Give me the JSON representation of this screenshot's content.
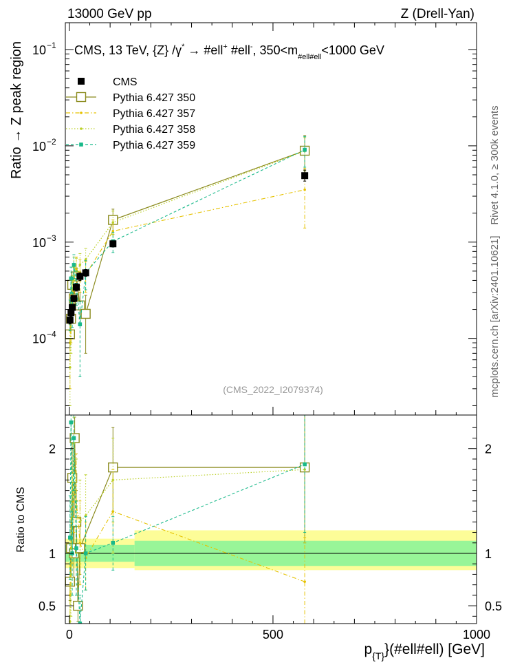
{
  "header": {
    "left": "13000 GeV pp",
    "right": "Z (Drell-Yan)"
  },
  "side_labels": {
    "rivet": "Rivet 4.1.0, ≥ 300k events",
    "mcplots": "mcplots.cern.ch [arXiv:2401.10621]"
  },
  "colors": {
    "cms": "#000000",
    "p350": "#8b8b1e",
    "p357": "#e6c200",
    "p358": "#bcd12a",
    "p359": "#19b98a",
    "band_inner": "#98f598",
    "band_outer": "#fdfd98"
  },
  "chart_data": [
    {
      "type": "line",
      "name": "main",
      "title": "CMS, 13 TeV, {Z} /γ* → #ell⁺ #ell⁻, 350<m_{#ell#ell}<1000 GeV",
      "title_parts": {
        "a": "CMS, 13 TeV, {Z} /γ",
        "a_sup": "*",
        "b": " →  #ell",
        "b_sup": "+",
        "c": " #ell",
        "c_sup": "-",
        "d": ", 350<m",
        "d_sub": "#ell#ell",
        "e": "<1000 GeV"
      },
      "ylabel": "Ratio → Z peak region",
      "yscale": "log",
      "ylim": [
        1.6e-05,
        0.19
      ],
      "xlim": [
        -10,
        1000
      ],
      "y_ticks": [
        {
          "value": 0.1,
          "base": "10",
          "exp": "−1"
        },
        {
          "value": 0.01,
          "base": "10",
          "exp": "−2"
        },
        {
          "value": 0.001,
          "base": "10",
          "exp": "−3"
        },
        {
          "value": 0.0001,
          "base": "10",
          "exp": "−4"
        }
      ],
      "watermark": "(CMS_2022_I2079374)",
      "legend_position": "top-left",
      "series": [
        {
          "name": "CMS",
          "style": "data",
          "points": [
            {
              "x": 1.5,
              "y": 0.000155,
              "lo": 0.000142,
              "hi": 0.000168
            },
            {
              "x": 4,
              "y": 0.000185,
              "lo": 0.00017,
              "hi": 0.0002
            },
            {
              "x": 7,
              "y": 0.00021,
              "lo": 0.000194,
              "hi": 0.000226
            },
            {
              "x": 11,
              "y": 0.00026,
              "lo": 0.00024,
              "hi": 0.00028
            },
            {
              "x": 17,
              "y": 0.00034,
              "lo": 0.00031,
              "hi": 0.00037
            },
            {
              "x": 26,
              "y": 0.00044,
              "lo": 0.0004,
              "hi": 0.00048
            },
            {
              "x": 40,
              "y": 0.00048,
              "lo": 0.00044,
              "hi": 0.00052
            },
            {
              "x": 107,
              "y": 0.00096,
              "lo": 0.00089,
              "hi": 0.00103
            },
            {
              "x": 578,
              "y": 0.0049,
              "lo": 0.0043,
              "hi": 0.0056
            }
          ]
        },
        {
          "name": "Pythia 6.427 350",
          "style": "open-square",
          "points": [
            {
              "x": 1.5,
              "y": 0.00011,
              "lo": 8e-05,
              "hi": 0.00014
            },
            {
              "x": 4,
              "y": 0.00016,
              "lo": 0.00012,
              "hi": 0.00021
            },
            {
              "x": 7,
              "y": 0.00036,
              "lo": 0.00029,
              "hi": 0.00044
            },
            {
              "x": 11,
              "y": 0.00026,
              "lo": 0.0002,
              "hi": 0.00033
            },
            {
              "x": 17,
              "y": 0.00044,
              "lo": 0.00035,
              "hi": 0.00054
            },
            {
              "x": 26,
              "y": 0.00022,
              "lo": 0.00016,
              "hi": 0.0003
            },
            {
              "x": 40,
              "y": 0.00018,
              "lo": 7e-05,
              "hi": 0.00028
            },
            {
              "x": 107,
              "y": 0.0017,
              "lo": 0.0012,
              "hi": 0.0022
            },
            {
              "x": 578,
              "y": 0.0089,
              "lo": 0.0052,
              "hi": 0.0128
            }
          ]
        },
        {
          "name": "Pythia 6.427 357",
          "style": "dashdot-dot",
          "points": [
            {
              "x": 1.5,
              "y": 9e-05,
              "lo": 3e-05,
              "hi": 0.00016
            },
            {
              "x": 4,
              "y": 0.00019,
              "lo": 9e-05,
              "hi": 0.00028
            },
            {
              "x": 7,
              "y": 0.00028,
              "lo": 0.00018,
              "hi": 0.00038
            },
            {
              "x": 11,
              "y": 0.00042,
              "lo": 0.0003,
              "hi": 0.00055
            },
            {
              "x": 17,
              "y": 0.00052,
              "lo": 0.00035,
              "hi": 0.0007
            },
            {
              "x": 26,
              "y": 0.00048,
              "lo": 0.0003,
              "hi": 0.00066
            },
            {
              "x": 40,
              "y": 0.00046,
              "lo": 0.0003,
              "hi": 0.00063
            },
            {
              "x": 107,
              "y": 0.0013,
              "lo": 0.0009,
              "hi": 0.0017
            },
            {
              "x": 578,
              "y": 0.0035,
              "lo": 0.0014,
              "hi": 0.0058
            }
          ]
        },
        {
          "name": "Pythia 6.427 358",
          "style": "dotted-dot",
          "points": [
            {
              "x": 1.5,
              "y": 5e-05,
              "lo": 2e-05,
              "hi": 0.0001
            },
            {
              "x": 4,
              "y": 0.00015,
              "lo": 7e-05,
              "hi": 0.00024
            },
            {
              "x": 7,
              "y": 0.00033,
              "lo": 0.00022,
              "hi": 0.00045
            },
            {
              "x": 11,
              "y": 0.00055,
              "lo": 0.0004,
              "hi": 0.0007
            },
            {
              "x": 17,
              "y": 0.0005,
              "lo": 0.00034,
              "hi": 0.00068
            },
            {
              "x": 26,
              "y": 0.00058,
              "lo": 0.0004,
              "hi": 0.00076
            },
            {
              "x": 40,
              "y": 0.00066,
              "lo": 0.00045,
              "hi": 0.00086
            },
            {
              "x": 107,
              "y": 0.0016,
              "lo": 0.0012,
              "hi": 0.0021
            },
            {
              "x": 578,
              "y": 0.0088,
              "lo": 0.0055,
              "hi": 0.0122
            }
          ]
        },
        {
          "name": "Pythia 6.427 359",
          "style": "dashed-square",
          "points": [
            {
              "x": 1.5,
              "y": 0.00018,
              "lo": 0.00012,
              "hi": 0.00025
            },
            {
              "x": 4,
              "y": 0.00042,
              "lo": 0.0003,
              "hi": 0.00055
            },
            {
              "x": 7,
              "y": 0.00021,
              "lo": 0.00013,
              "hi": 0.0003
            },
            {
              "x": 11,
              "y": 0.00058,
              "lo": 0.00042,
              "hi": 0.00074
            },
            {
              "x": 17,
              "y": 0.00036,
              "lo": 0.00022,
              "hi": 0.0005
            },
            {
              "x": 26,
              "y": 0.00014,
              "lo": 4e-05,
              "hi": 0.00024
            },
            {
              "x": 40,
              "y": 0.00048,
              "lo": 0.00032,
              "hi": 0.00064
            },
            {
              "x": 107,
              "y": 0.00102,
              "lo": 0.00078,
              "hi": 0.00126
            },
            {
              "x": 578,
              "y": 0.0091,
              "lo": 0.006,
              "hi": 0.0125
            }
          ]
        }
      ]
    },
    {
      "type": "line",
      "name": "ratio",
      "ylabel": "Ratio to CMS",
      "xlabel": "p_{T}(#ell#ell) [GeV]",
      "xlabel_parts": {
        "main": "p",
        "sub": "{T}",
        "rest": "}(#ell#ell) [GeV]"
      },
      "yscale": "linear",
      "ylim": [
        0.33,
        2.32
      ],
      "xlim": [
        -10,
        1000
      ],
      "x_ticks": [
        0,
        500,
        1000
      ],
      "y_ticks": [
        0.5,
        1,
        2
      ],
      "bands": [
        {
          "x0": -10,
          "x1": 160,
          "inner": [
            0.92,
            1.08
          ],
          "outer": [
            0.86,
            1.14
          ]
        },
        {
          "x0": 160,
          "x1": 1000,
          "inner": [
            0.88,
            1.12
          ],
          "outer": [
            0.84,
            1.22
          ]
        }
      ],
      "series": [
        {
          "name": "Pythia 6.427 350",
          "style": "open-square",
          "points": [
            {
              "x": 1.5,
              "y": 0.73,
              "lo": 0.55,
              "hi": 0.9
            },
            {
              "x": 4,
              "y": 1.05,
              "lo": 0.8,
              "hi": 1.3
            },
            {
              "x": 7,
              "y": 1.72,
              "lo": 1.4,
              "hi": 2.05
            },
            {
              "x": 11,
              "y": 1.0,
              "lo": 0.75,
              "hi": 1.25
            },
            {
              "x": 13,
              "y": 2.1,
              "lo": 1.7,
              "hi": 2.3
            },
            {
              "x": 17,
              "y": 1.3,
              "lo": 1.0,
              "hi": 1.6
            },
            {
              "x": 21,
              "y": 0.5,
              "lo": 0.35,
              "hi": 0.7
            },
            {
              "x": 26,
              "y": 1.05,
              "lo": 0.8,
              "hi": 1.3
            },
            {
              "x": 107,
              "y": 1.82,
              "lo": 1.4,
              "hi": 2.2
            },
            {
              "x": 578,
              "y": 1.82,
              "lo": 1.1,
              "hi": 2.5
            }
          ]
        },
        {
          "name": "Pythia 6.427 357",
          "style": "dashdot-dot",
          "points": [
            {
              "x": 1.5,
              "y": 0.6,
              "lo": 0.33,
              "hi": 0.9
            },
            {
              "x": 4,
              "y": 1.05,
              "lo": 0.6,
              "hi": 1.5
            },
            {
              "x": 7,
              "y": 1.35,
              "lo": 0.9,
              "hi": 1.8
            },
            {
              "x": 11,
              "y": 1.6,
              "lo": 1.2,
              "hi": 2.0
            },
            {
              "x": 17,
              "y": 1.5,
              "lo": 1.05,
              "hi": 1.95
            },
            {
              "x": 26,
              "y": 1.1,
              "lo": 0.7,
              "hi": 1.5
            },
            {
              "x": 40,
              "y": 0.96,
              "lo": 0.65,
              "hi": 1.3
            },
            {
              "x": 107,
              "y": 1.4,
              "lo": 1.0,
              "hi": 1.8
            },
            {
              "x": 578,
              "y": 0.73,
              "lo": 0.33,
              "hi": 1.15
            }
          ]
        },
        {
          "name": "Pythia 6.427 358",
          "style": "dotted-dot",
          "points": [
            {
              "x": 1.5,
              "y": 0.35,
              "lo": 0.33,
              "hi": 0.7
            },
            {
              "x": 4,
              "y": 0.8,
              "lo": 0.4,
              "hi": 1.2
            },
            {
              "x": 7,
              "y": 1.55,
              "lo": 1.05,
              "hi": 2.05
            },
            {
              "x": 11,
              "y": 2.05,
              "lo": 1.6,
              "hi": 2.3
            },
            {
              "x": 17,
              "y": 1.45,
              "lo": 1.0,
              "hi": 1.9
            },
            {
              "x": 26,
              "y": 1.3,
              "lo": 0.9,
              "hi": 1.7
            },
            {
              "x": 40,
              "y": 1.36,
              "lo": 0.95,
              "hi": 1.75
            },
            {
              "x": 107,
              "y": 1.7,
              "lo": 1.3,
              "hi": 2.1
            },
            {
              "x": 578,
              "y": 1.8,
              "lo": 1.1,
              "hi": 2.5
            }
          ]
        },
        {
          "name": "Pythia 6.427 359",
          "style": "dashed-square",
          "points": [
            {
              "x": 1.5,
              "y": 1.15,
              "lo": 0.75,
              "hi": 1.55
            },
            {
              "x": 4,
              "y": 2.25,
              "lo": 1.8,
              "hi": 2.32
            },
            {
              "x": 7,
              "y": 1.0,
              "lo": 0.6,
              "hi": 1.4
            },
            {
              "x": 11,
              "y": 2.1,
              "lo": 1.6,
              "hi": 2.32
            },
            {
              "x": 17,
              "y": 1.05,
              "lo": 0.6,
              "hi": 1.5
            },
            {
              "x": 26,
              "y": 0.33,
              "lo": 0.33,
              "hi": 0.6
            },
            {
              "x": 40,
              "y": 1.0,
              "lo": 0.65,
              "hi": 1.35
            },
            {
              "x": 107,
              "y": 1.1,
              "lo": 0.84,
              "hi": 1.35
            },
            {
              "x": 578,
              "y": 1.85,
              "lo": 1.2,
              "hi": 2.5
            }
          ]
        }
      ]
    }
  ]
}
